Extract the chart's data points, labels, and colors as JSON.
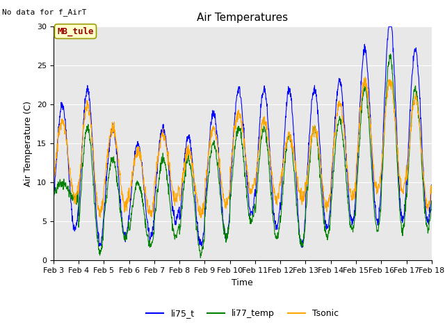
{
  "title": "Air Temperatures",
  "no_data_text": "No data for f_AirT",
  "mb_tule_label": "MB_tule",
  "xlabel": "Time",
  "ylabel": "Air Temperature (C)",
  "ylim": [
    0,
    30
  ],
  "background_color": "#e8e8e8",
  "fig_background": "#ffffff",
  "line_colors": {
    "li75_t": "blue",
    "li77_temp": "green",
    "Tsonic": "orange"
  },
  "legend_labels": [
    "li75_t",
    "li77_temp",
    "Tsonic"
  ],
  "xtick_labels": [
    "Feb 3",
    "Feb 4",
    "Feb 5",
    "Feb 6",
    "Feb 7",
    "Feb 8",
    "Feb 9",
    "Feb 10",
    "Feb 11",
    "Feb 12",
    "Feb 13",
    "Feb 14",
    "Feb 15",
    "Feb 16",
    "Feb 17",
    "Feb 18"
  ],
  "ytick_labels": [
    "0",
    "5",
    "10",
    "15",
    "20",
    "25",
    "30"
  ],
  "title_fontsize": 11,
  "axis_label_fontsize": 9,
  "tick_fontsize": 8,
  "legend_fontsize": 9
}
